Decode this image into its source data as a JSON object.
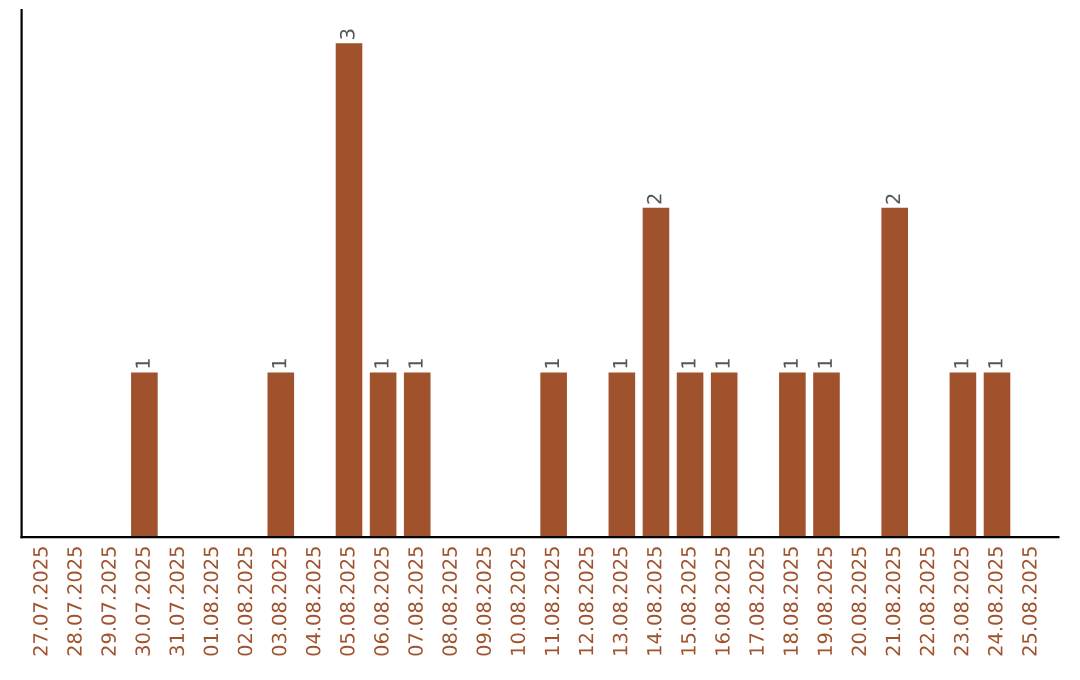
{
  "chart_data": {
    "type": "bar",
    "categories": [
      "27.07.2025",
      "28.07.2025",
      "29.07.2025",
      "30.07.2025",
      "31.07.2025",
      "01.08.2025",
      "02.08.2025",
      "03.08.2025",
      "04.08.2025",
      "05.08.2025",
      "06.08.2025",
      "07.08.2025",
      "08.08.2025",
      "09.08.2025",
      "10.08.2025",
      "11.08.2025",
      "12.08.2025",
      "13.08.2025",
      "14.08.2025",
      "15.08.2025",
      "16.08.2025",
      "17.08.2025",
      "18.08.2025",
      "19.08.2025",
      "20.08.2025",
      "21.08.2025",
      "22.08.2025",
      "23.08.2025",
      "24.08.2025",
      "25.08.2025"
    ],
    "values": [
      0,
      0,
      0,
      1,
      0,
      0,
      0,
      1,
      0,
      3,
      1,
      1,
      0,
      0,
      0,
      1,
      0,
      1,
      2,
      1,
      1,
      0,
      1,
      1,
      0,
      2,
      0,
      1,
      1,
      0
    ],
    "value_labels": [
      null,
      null,
      null,
      "1",
      null,
      null,
      null,
      "1",
      null,
      "3",
      "1",
      "1",
      null,
      null,
      null,
      "1",
      null,
      "1",
      "2",
      "1",
      "1",
      null,
      "1",
      "1",
      null,
      "2",
      null,
      "1",
      "1",
      null
    ],
    "color": "#a0522d",
    "ylim": [
      0,
      3.2
    ],
    "tick_labels": "x",
    "grid": false
  }
}
